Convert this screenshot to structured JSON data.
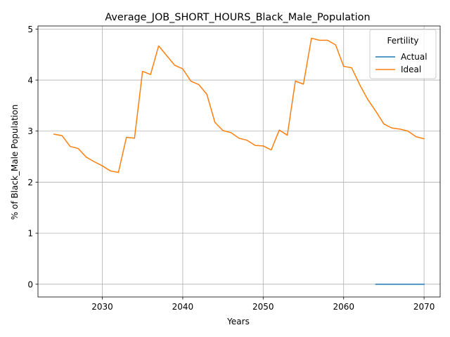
{
  "chart_data": {
    "type": "line",
    "title": "Average_JOB_SHORT_HOURS_Black_Male_Population",
    "xlabel": "Years",
    "ylabel": "% of Black_Male Population",
    "xlim": [
      2022,
      2072
    ],
    "ylim": [
      -0.25,
      5.06
    ],
    "xticks": [
      2030,
      2040,
      2050,
      2060,
      2070
    ],
    "yticks": [
      0,
      1,
      2,
      3,
      4,
      5
    ],
    "grid": true,
    "legend": {
      "title": "Fertility",
      "placement": "top-right"
    },
    "series": [
      {
        "name": "Actual",
        "color": "#1f77b4",
        "x": [
          2064,
          2065,
          2066,
          2067,
          2068,
          2069,
          2070
        ],
        "y": [
          0,
          0,
          0,
          0,
          0,
          0,
          0
        ]
      },
      {
        "name": "Ideal",
        "color": "#ff7f0e",
        "x": [
          2024,
          2025,
          2026,
          2027,
          2028,
          2029,
          2030,
          2031,
          2032,
          2033,
          2034,
          2035,
          2036,
          2037,
          2038,
          2039,
          2040,
          2041,
          2042,
          2043,
          2044,
          2045,
          2046,
          2047,
          2048,
          2049,
          2050,
          2051,
          2052,
          2053,
          2054,
          2055,
          2056,
          2057,
          2058,
          2059,
          2060,
          2061,
          2062,
          2063,
          2064,
          2065,
          2066,
          2067,
          2068,
          2069,
          2070
        ],
        "y": [
          2.94,
          2.91,
          2.7,
          2.66,
          2.49,
          2.4,
          2.32,
          2.22,
          2.19,
          2.88,
          2.86,
          4.17,
          4.11,
          4.67,
          4.48,
          4.29,
          4.22,
          3.98,
          3.91,
          3.72,
          3.17,
          3.01,
          2.97,
          2.86,
          2.82,
          2.72,
          2.71,
          2.63,
          3.02,
          2.92,
          3.98,
          3.92,
          4.82,
          4.78,
          4.78,
          4.69,
          4.27,
          4.24,
          3.91,
          3.62,
          3.39,
          3.14,
          3.06,
          3.04,
          3.0,
          2.89,
          2.85
        ]
      }
    ]
  }
}
